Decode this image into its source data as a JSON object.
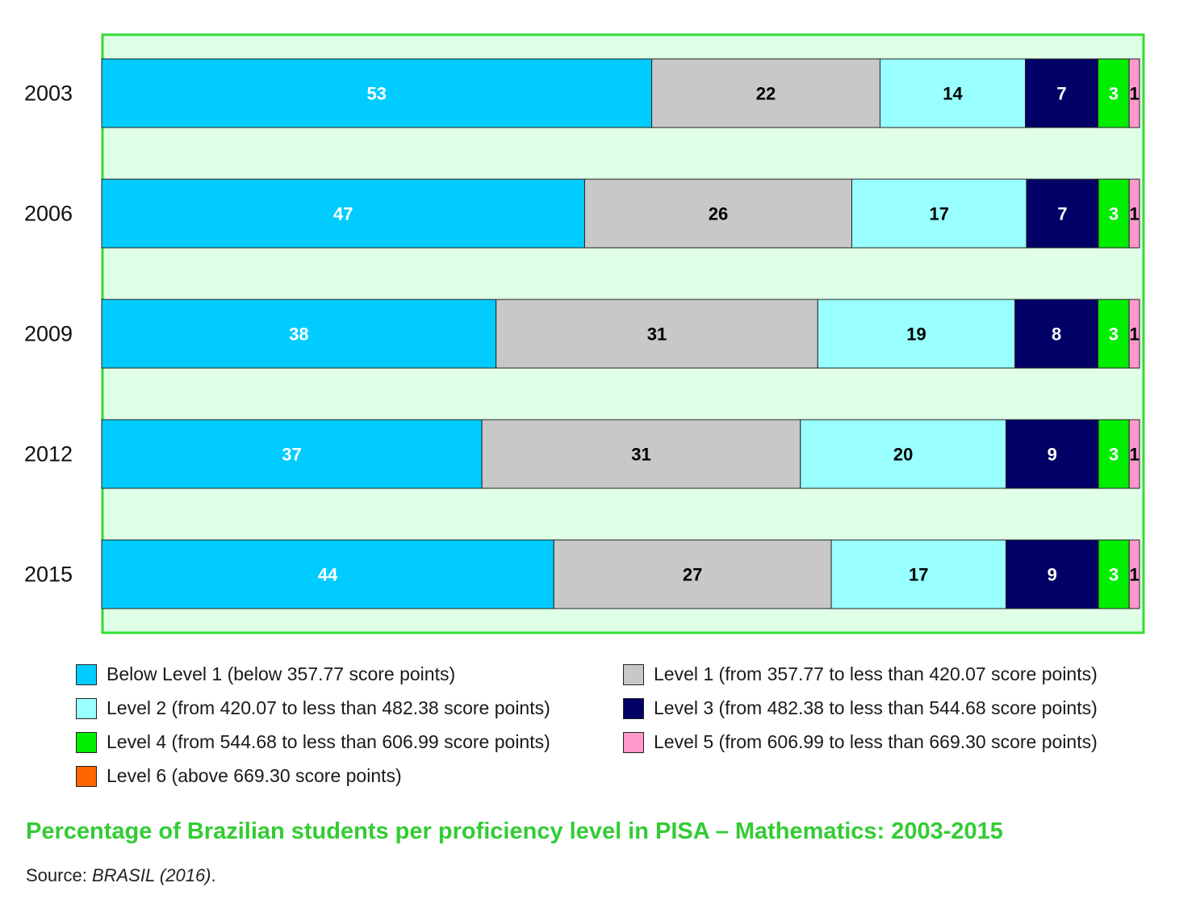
{
  "chart_data": {
    "type": "bar",
    "orientation": "horizontal",
    "stacked": true,
    "categories": [
      "2003",
      "2006",
      "2009",
      "2012",
      "2015"
    ],
    "series": [
      {
        "name": "Below Level 1 (below 357.77 score points)",
        "color": "#00ccff",
        "label_color": "#ffffff",
        "values": [
          53,
          47,
          38,
          37,
          44
        ]
      },
      {
        "name": "Level 1 (from 357.77 to less than 420.07 score points)",
        "color": "#c8c8c8",
        "label_color": "#000000",
        "values": [
          22,
          26,
          31,
          31,
          27
        ]
      },
      {
        "name": "Level 2 (from 420.07 to less than 482.38 score points)",
        "color": "#99ffff",
        "label_color": "#000000",
        "values": [
          14,
          17,
          19,
          20,
          17
        ]
      },
      {
        "name": "Level 3 (from 482.38 to less than 544.68 score points)",
        "color": "#000066",
        "label_color": "#ffffff",
        "values": [
          7,
          7,
          8,
          9,
          9
        ]
      },
      {
        "name": "Level 4 (from 544.68 to less than 606.99 score points)",
        "color": "#00ee00",
        "label_color": "#ffffff",
        "values": [
          3,
          3,
          3,
          3,
          3
        ]
      },
      {
        "name": "Level 5 (from 606.99 to less than 669.30 score points)",
        "color": "#ff99cc",
        "label_color": "#000000",
        "values": [
          1,
          1,
          1,
          1,
          1
        ]
      },
      {
        "name": "Level 6 (above 669.30 score points)",
        "color": "#ff6600",
        "label_color": "#000000",
        "values": [
          0,
          0,
          0,
          0,
          0
        ]
      }
    ],
    "plot_background": "#dfffe6",
    "plot_border": "#33dd33",
    "title": "",
    "xlabel": "",
    "ylabel": "",
    "legend_position": "bottom",
    "grid": false
  },
  "legend_order": [
    0,
    1,
    2,
    3,
    4,
    5,
    6
  ],
  "caption": {
    "title": "Percentage of Brazilian students per proficiency level in PISA – Mathematics: 2003-2015",
    "source_prefix": "Source: ",
    "source_ref": "BRASIL (2016)",
    "source_suffix": "."
  }
}
